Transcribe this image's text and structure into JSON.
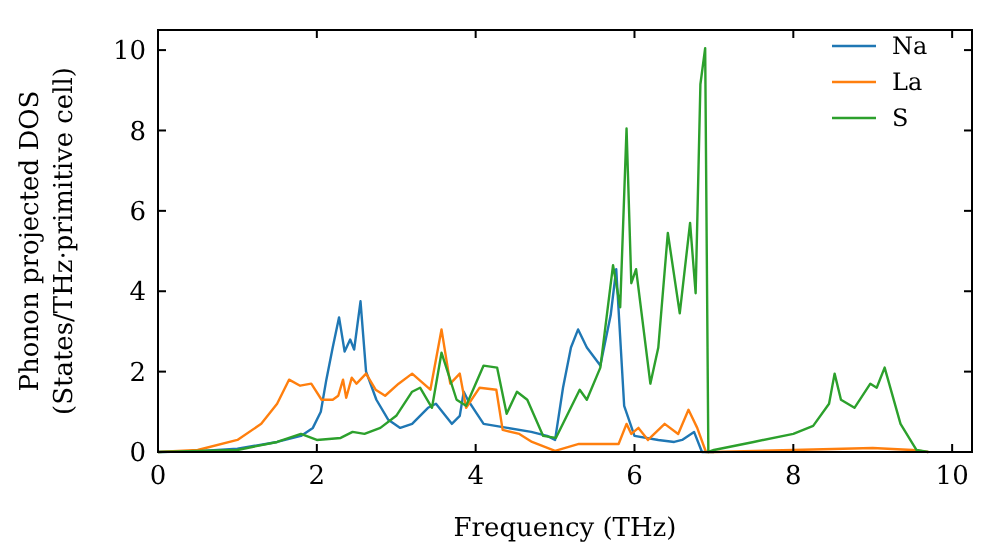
{
  "chart_data": {
    "type": "line",
    "xlabel": "Frequency (THz)",
    "ylabel": "Phonon projected DOS\n(States/THz·primitive cell)",
    "xlim": [
      0,
      10.25
    ],
    "ylim": [
      0,
      10.5
    ],
    "xticks": [
      0,
      2,
      4,
      6,
      8,
      10
    ],
    "yticks": [
      0,
      2,
      4,
      6,
      8,
      10
    ],
    "grid": false,
    "legend": "top right",
    "marker": "none",
    "line_style": "solid",
    "series": [
      {
        "name": "Na",
        "color": "#1f77b4",
        "x": [
          0,
          0.5,
          1,
          1.5,
          1.8,
          1.95,
          2.05,
          2.12,
          2.2,
          2.28,
          2.35,
          2.42,
          2.47,
          2.55,
          2.62,
          2.75,
          2.9,
          3.05,
          3.2,
          3.4,
          3.5,
          3.62,
          3.7,
          3.8,
          3.85,
          3.9,
          4.0,
          4.1,
          4.4,
          4.7,
          4.9,
          5.0,
          5.1,
          5.2,
          5.29,
          5.4,
          5.57,
          5.7,
          5.77,
          5.87,
          6.0,
          6.3,
          6.5,
          6.6,
          6.75,
          6.85,
          7.0
        ],
        "values": [
          0,
          0.02,
          0.08,
          0.25,
          0.4,
          0.6,
          1.0,
          1.8,
          2.6,
          3.35,
          2.5,
          2.8,
          2.55,
          3.75,
          2.0,
          1.3,
          0.8,
          0.6,
          0.7,
          1.1,
          1.2,
          0.9,
          0.7,
          0.9,
          1.5,
          1.3,
          1.0,
          0.7,
          0.6,
          0.5,
          0.4,
          0.3,
          1.6,
          2.6,
          3.05,
          2.6,
          2.15,
          3.4,
          4.55,
          1.15,
          0.4,
          0.3,
          0.25,
          0.3,
          0.5,
          0,
          0
        ]
      },
      {
        "name": "La",
        "color": "#ff7f0e",
        "x": [
          0,
          0.5,
          1,
          1.3,
          1.5,
          1.65,
          1.79,
          1.93,
          2.06,
          2.2,
          2.27,
          2.33,
          2.37,
          2.44,
          2.5,
          2.62,
          2.74,
          2.86,
          3.03,
          3.2,
          3.43,
          3.57,
          3.68,
          3.8,
          3.88,
          4.05,
          4.26,
          4.34,
          4.55,
          4.71,
          5.0,
          5.3,
          5.8,
          5.9,
          5.96,
          6.05,
          6.17,
          6.38,
          6.55,
          6.68,
          6.79,
          6.9,
          7.0,
          8.0,
          9.0,
          9.5,
          9.7
        ],
        "values": [
          0,
          0.05,
          0.3,
          0.7,
          1.2,
          1.8,
          1.65,
          1.7,
          1.3,
          1.3,
          1.4,
          1.8,
          1.35,
          1.85,
          1.7,
          1.95,
          1.55,
          1.4,
          1.7,
          1.95,
          1.55,
          3.05,
          1.7,
          1.95,
          1.1,
          1.6,
          1.55,
          0.55,
          0.45,
          0.25,
          0.03,
          0.2,
          0.2,
          0.7,
          0.45,
          0.6,
          0.3,
          0.7,
          0.45,
          1.05,
          0.6,
          0,
          0,
          0.05,
          0.1,
          0.05,
          0
        ]
      },
      {
        "name": "S",
        "color": "#2ca02c",
        "x": [
          0,
          1,
          1.5,
          1.8,
          2.0,
          2.3,
          2.45,
          2.6,
          2.8,
          3.0,
          3.2,
          3.3,
          3.45,
          3.57,
          3.76,
          3.88,
          4.1,
          4.27,
          4.39,
          4.52,
          4.65,
          4.85,
          5.01,
          5.31,
          5.4,
          5.57,
          5.73,
          5.82,
          5.9,
          5.96,
          6.02,
          6.2,
          6.3,
          6.42,
          6.57,
          6.7,
          6.77,
          6.83,
          6.89,
          6.93,
          7.0,
          7.5,
          8.0,
          8.25,
          8.45,
          8.52,
          8.6,
          8.77,
          8.97,
          9.05,
          9.15,
          9.35,
          9.55,
          9.7
        ],
        "values": [
          0,
          0.05,
          0.25,
          0.45,
          0.3,
          0.35,
          0.5,
          0.45,
          0.6,
          0.9,
          1.5,
          1.6,
          1.1,
          2.47,
          1.3,
          1.15,
          2.15,
          2.1,
          0.95,
          1.5,
          1.3,
          0.4,
          0.35,
          1.55,
          1.3,
          2.1,
          4.65,
          3.6,
          8.05,
          4.2,
          4.55,
          1.7,
          2.6,
          5.45,
          3.45,
          5.7,
          3.95,
          9.15,
          10.05,
          0,
          0.05,
          0.25,
          0.45,
          0.65,
          1.2,
          1.95,
          1.3,
          1.1,
          1.7,
          1.6,
          2.1,
          0.7,
          0.05,
          0
        ]
      }
    ]
  }
}
